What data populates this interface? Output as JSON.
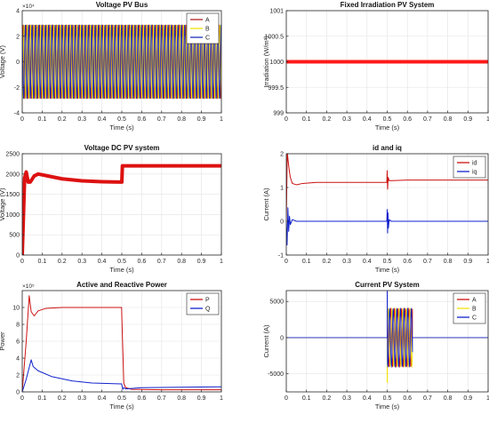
{
  "figure": {
    "background": "#ffffff",
    "axes_background": "#ffffff",
    "grid": true
  },
  "chart_data": [
    {
      "id": "voltage-pv-bus",
      "type": "line",
      "title": "Voltage PV Bus",
      "xlabel": "Time (s)",
      "ylabel": "Voltage (V)",
      "exponent": "×10⁴",
      "xlim": [
        0,
        1
      ],
      "ylim": [
        -4,
        4
      ],
      "xticks": [
        0,
        0.1,
        0.2,
        0.3,
        0.4,
        0.5,
        0.6,
        0.7,
        0.8,
        0.9,
        1
      ],
      "yticks": [
        -4,
        -2,
        0,
        2,
        4
      ],
      "legend": "top-right",
      "waveform": {
        "amplitude": 2.9,
        "cycles": 60,
        "phase_deg": [
          0,
          120,
          240
        ]
      },
      "series": [
        {
          "name": "A",
          "color": "#b22222"
        },
        {
          "name": "B",
          "color": "#f2e30a"
        },
        {
          "name": "C",
          "color": "#1f2fb8"
        }
      ]
    },
    {
      "id": "fixed-irradiation",
      "type": "line",
      "title": "Fixed Irradiation PV System",
      "xlabel": "Time (s)",
      "ylabel": "Irradiation (W/m²)",
      "xlim": [
        0,
        1
      ],
      "ylim": [
        999,
        1001
      ],
      "xticks": [
        0,
        0.1,
        0.2,
        0.3,
        0.4,
        0.5,
        0.6,
        0.7,
        0.8,
        0.9,
        1
      ],
      "yticks": [
        999,
        999.5,
        1000,
        1000.5,
        1001
      ],
      "series": [
        {
          "name": "",
          "color": "#ff1a1a",
          "points": [
            [
              0,
              1000
            ],
            [
              1,
              1000
            ]
          ]
        }
      ]
    },
    {
      "id": "voltage-dc",
      "type": "line",
      "title": "Voltage DC PV system",
      "xlabel": "Time (s)",
      "ylabel": "Voltage (V)",
      "xlim": [
        0,
        1
      ],
      "ylim": [
        0,
        2500
      ],
      "xticks": [
        0,
        0.1,
        0.2,
        0.3,
        0.4,
        0.5,
        0.6,
        0.7,
        0.8,
        0.9,
        1
      ],
      "yticks": [
        0,
        500,
        1000,
        1500,
        2000,
        2500
      ],
      "series": [
        {
          "name": "",
          "color": "#dd1111",
          "points": [
            [
              0,
              0
            ],
            [
              0.012,
              1900
            ],
            [
              0.02,
              2050
            ],
            [
              0.03,
              1800
            ],
            [
              0.04,
              1800
            ],
            [
              0.06,
              1950
            ],
            [
              0.08,
              2000
            ],
            [
              0.12,
              1960
            ],
            [
              0.2,
              1880
            ],
            [
              0.3,
              1830
            ],
            [
              0.4,
              1810
            ],
            [
              0.499,
              1800
            ],
            [
              0.5,
              1800
            ],
            [
              0.503,
              2200
            ],
            [
              0.6,
              2200
            ],
            [
              0.8,
              2200
            ],
            [
              1,
              2200
            ]
          ]
        }
      ]
    },
    {
      "id": "id-iq",
      "type": "line",
      "title": "id and iq",
      "xlabel": "Time (s)",
      "ylabel": "Current (A)",
      "xlim": [
        0,
        1
      ],
      "ylim": [
        -1,
        2
      ],
      "xticks": [
        0,
        0.1,
        0.2,
        0.3,
        0.4,
        0.5,
        0.6,
        0.7,
        0.8,
        0.9,
        1
      ],
      "yticks": [
        -1,
        0,
        1,
        2
      ],
      "legend": "top-right",
      "series": [
        {
          "name": "id",
          "color": "#cc1111",
          "points": [
            [
              0,
              0
            ],
            [
              0.005,
              2.05
            ],
            [
              0.01,
              1.75
            ],
            [
              0.015,
              1.5
            ],
            [
              0.02,
              1.3
            ],
            [
              0.03,
              1.12
            ],
            [
              0.05,
              1.08
            ],
            [
              0.08,
              1.12
            ],
            [
              0.15,
              1.15
            ],
            [
              0.3,
              1.15
            ],
            [
              0.498,
              1.15
            ],
            [
              0.5,
              1.5
            ],
            [
              0.502,
              0.95
            ],
            [
              0.505,
              1.3
            ],
            [
              0.51,
              1.2
            ],
            [
              0.6,
              1.22
            ],
            [
              0.8,
              1.22
            ],
            [
              1,
              1.22
            ]
          ]
        },
        {
          "name": "iq",
          "color": "#1122cc",
          "points": [
            [
              0,
              0
            ],
            [
              0.004,
              -0.7
            ],
            [
              0.008,
              0.4
            ],
            [
              0.012,
              -0.3
            ],
            [
              0.016,
              0.15
            ],
            [
              0.02,
              -0.1
            ],
            [
              0.03,
              0.05
            ],
            [
              0.05,
              0
            ],
            [
              0.498,
              0
            ],
            [
              0.5,
              0.35
            ],
            [
              0.502,
              -0.35
            ],
            [
              0.504,
              0.25
            ],
            [
              0.506,
              -0.2
            ],
            [
              0.51,
              0.05
            ],
            [
              0.52,
              0
            ],
            [
              1,
              0
            ]
          ]
        }
      ]
    },
    {
      "id": "active-reactive-power",
      "type": "line",
      "title": "Active and Reactive Power",
      "xlabel": "Time (s)",
      "ylabel": "Power",
      "exponent": "×10⁵",
      "xlim": [
        0,
        1
      ],
      "ylim": [
        0,
        12
      ],
      "xticks": [
        0,
        0.1,
        0.2,
        0.3,
        0.4,
        0.5,
        0.6,
        0.7,
        0.8,
        0.9,
        1
      ],
      "yticks": [
        0,
        2,
        4,
        6,
        8,
        10
      ],
      "legend": "top-right",
      "series": [
        {
          "name": "P",
          "color": "#cc1111",
          "points": [
            [
              0,
              0
            ],
            [
              0.02,
              6
            ],
            [
              0.035,
              11.4
            ],
            [
              0.045,
              9.5
            ],
            [
              0.06,
              9.0
            ],
            [
              0.08,
              9.6
            ],
            [
              0.12,
              9.9
            ],
            [
              0.2,
              10.0
            ],
            [
              0.3,
              10.0
            ],
            [
              0.499,
              10.0
            ],
            [
              0.5,
              9.0
            ],
            [
              0.51,
              1.0
            ],
            [
              0.52,
              0.5
            ],
            [
              0.55,
              0.3
            ],
            [
              0.7,
              0.25
            ],
            [
              1,
              0.25
            ]
          ]
        },
        {
          "name": "Q",
          "color": "#1122cc",
          "points": [
            [
              0,
              0
            ],
            [
              0.02,
              1.5
            ],
            [
              0.045,
              3.8
            ],
            [
              0.055,
              3.0
            ],
            [
              0.08,
              2.5
            ],
            [
              0.15,
              1.8
            ],
            [
              0.25,
              1.3
            ],
            [
              0.35,
              1.05
            ],
            [
              0.499,
              0.95
            ],
            [
              0.505,
              0.3
            ],
            [
              0.51,
              0.5
            ],
            [
              0.52,
              0.35
            ],
            [
              0.6,
              0.5
            ],
            [
              0.8,
              0.55
            ],
            [
              1,
              0.6
            ]
          ]
        }
      ]
    },
    {
      "id": "current-pv-system",
      "type": "line",
      "title": "Current PV System",
      "xlabel": "Time (s)",
      "ylabel": "Current (A)",
      "xlim": [
        0,
        1
      ],
      "ylim": [
        -7500,
        6500
      ],
      "xticks": [
        0,
        0.1,
        0.2,
        0.3,
        0.4,
        0.5,
        0.6,
        0.7,
        0.8,
        0.9,
        1
      ],
      "yticks": [
        -5000,
        0,
        5000
      ],
      "legend": "top-right",
      "waveform": {
        "amplitude": 4000,
        "t_start": 0.5,
        "t_end": 0.625,
        "cycles": 7,
        "phase_deg": [
          0,
          120,
          240
        ],
        "initial_spike": 6400
      },
      "series": [
        {
          "name": "A",
          "color": "#cc1111"
        },
        {
          "name": "B",
          "color": "#f2e30a"
        },
        {
          "name": "C",
          "color": "#1122cc"
        }
      ]
    }
  ]
}
